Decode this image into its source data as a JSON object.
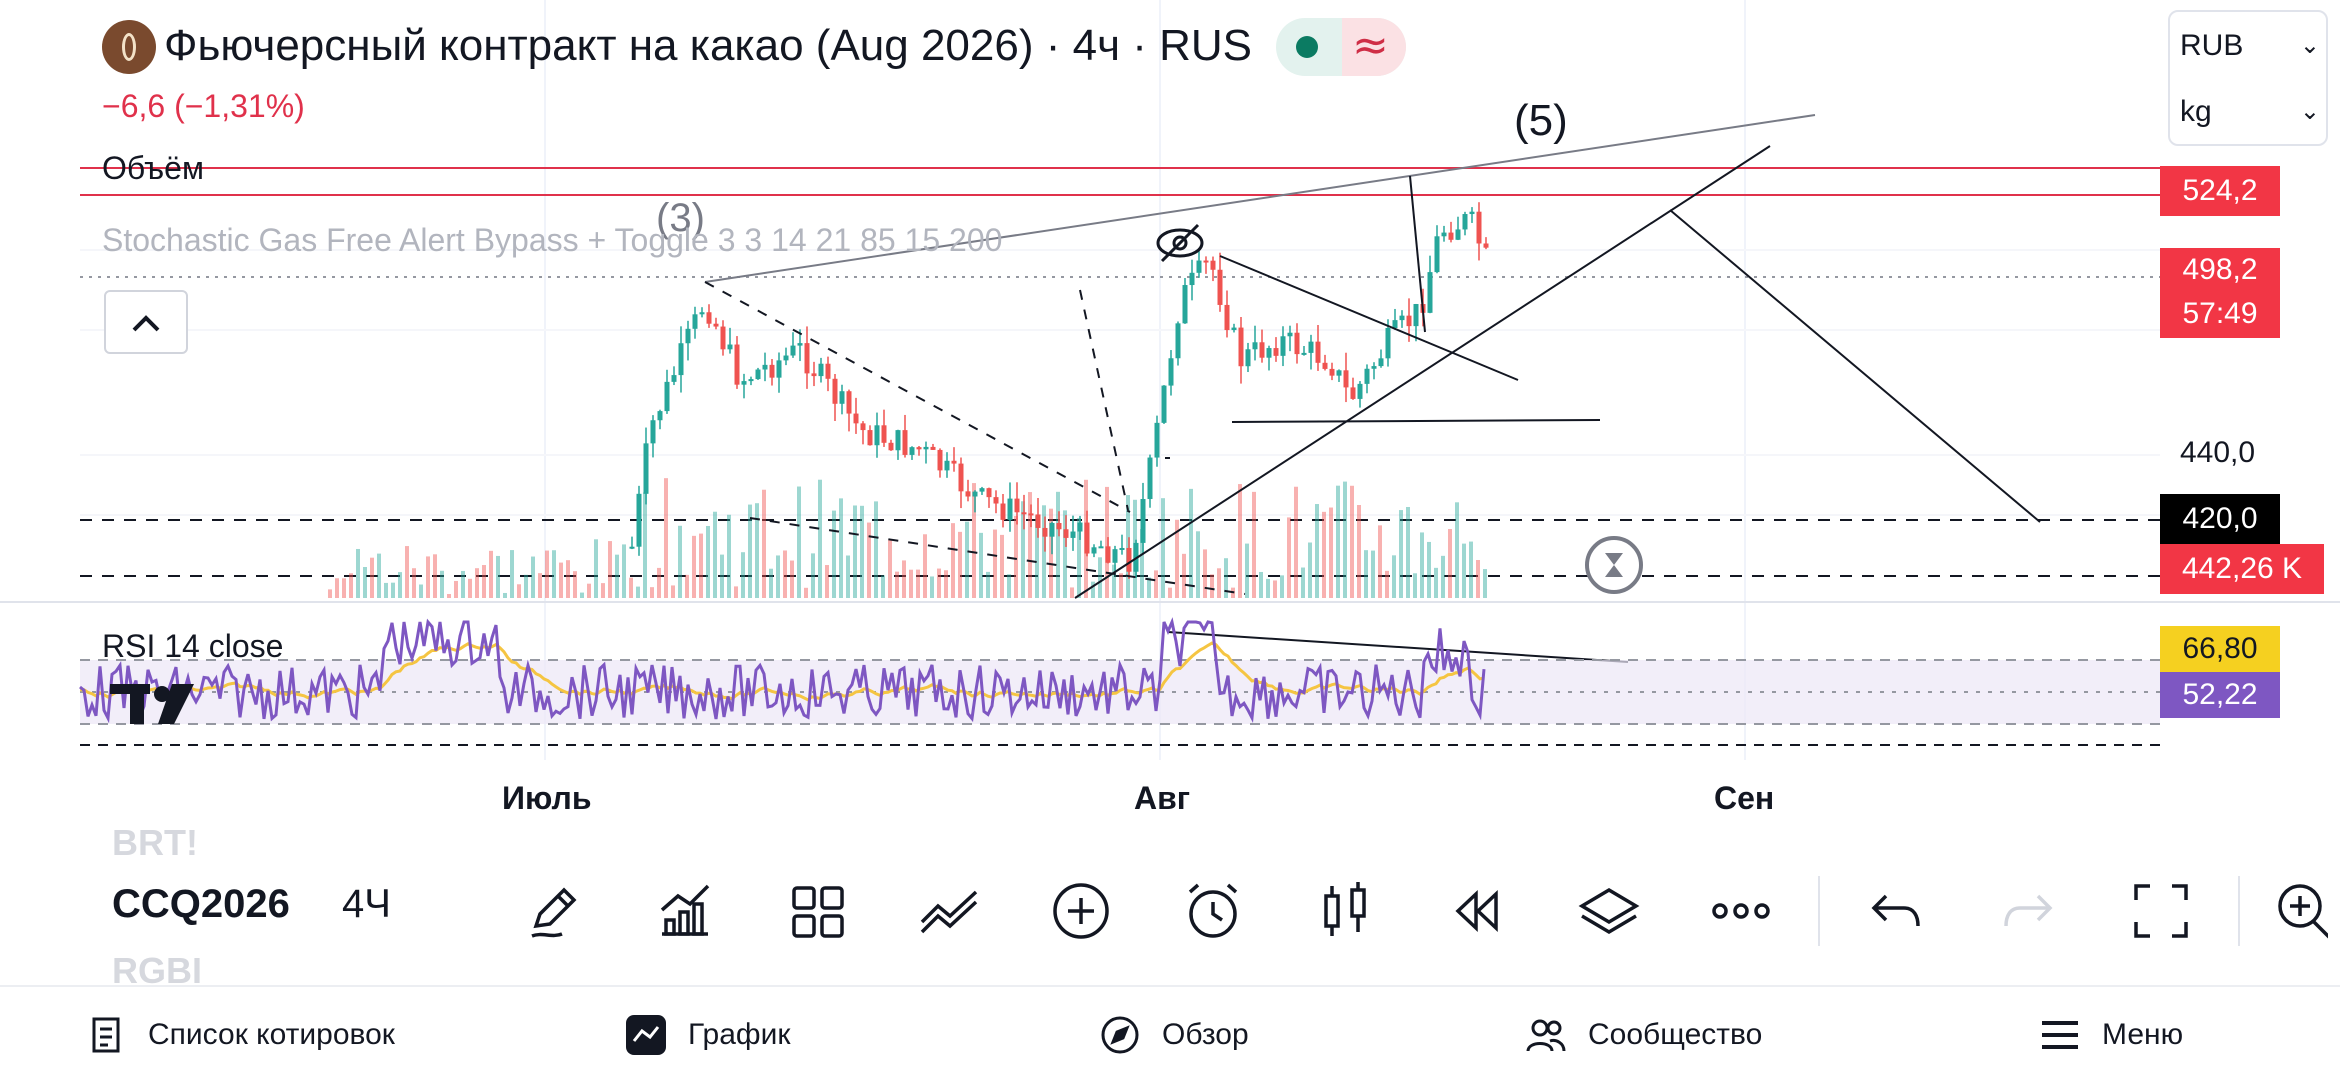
{
  "header": {
    "title": "Фьючерсный контракт на какао (Aug 2026) · 4ч · RUS",
    "change": "−6,6 (−1,31%)",
    "status_pill_wave": "≈"
  },
  "panes": {
    "volume_label": "Объём",
    "indicator_label": "Stochastic Gas Free Alert Bypass + Toggle 3 3 14 21 85 15 200",
    "rsi_label": "RSI 14 close"
  },
  "wave_labels": {
    "wave3": "(3)",
    "wave5": "(5)"
  },
  "unit_selectors": {
    "currency": "RUB",
    "unit": "kg"
  },
  "price_labels": {
    "level_top": "524,2",
    "last_price": "498,2",
    "countdown": "57:49",
    "axis_tick_440": "440,0",
    "level_420": "420,0",
    "volume_value": "442,26 K",
    "rsi_value": "66,80",
    "rsi_ma_value": "52,22"
  },
  "x_axis": [
    "Июль",
    "Авг",
    "Сен"
  ],
  "toolbar": {
    "prev_symbol": "BRT!",
    "symbol": "CCQ2026",
    "next_symbol": "RGBI",
    "interval": "4Ч",
    "tools": [
      "pencil-icon",
      "indicators-icon",
      "templates-icon",
      "compare-icon",
      "add-icon",
      "alert-icon",
      "bar-style-icon",
      "replay-icon",
      "layers-icon",
      "more-icon",
      "undo-icon",
      "redo-icon",
      "fullscreen-icon",
      "search-icon"
    ]
  },
  "bottom_nav": {
    "watchlist": "Список котировок",
    "chart": "График",
    "explore": "Обзор",
    "community": "Сообщество",
    "menu": "Меню"
  },
  "colors": {
    "up": "#26a69a",
    "down": "#ef5350",
    "rsi_line": "#7e57c2",
    "rsi_ma": "#f5c542",
    "red_label": "#f23645",
    "black_label": "#000000",
    "accent_green": "#0b7b62"
  },
  "chart_data": {
    "type": "candlestick",
    "interval": "4ч",
    "x": [
      "Июль",
      "Авг",
      "Сен"
    ],
    "y_ticks": [
      440.0,
      420.0
    ],
    "horizontal_levels": [
      524.2,
      498.2,
      420.0
    ],
    "last_price": 498.2,
    "volume_last": "442,26 K",
    "rsi": {
      "period": 14,
      "source": "close",
      "value": 66.8,
      "ma": 52.22
    }
  }
}
